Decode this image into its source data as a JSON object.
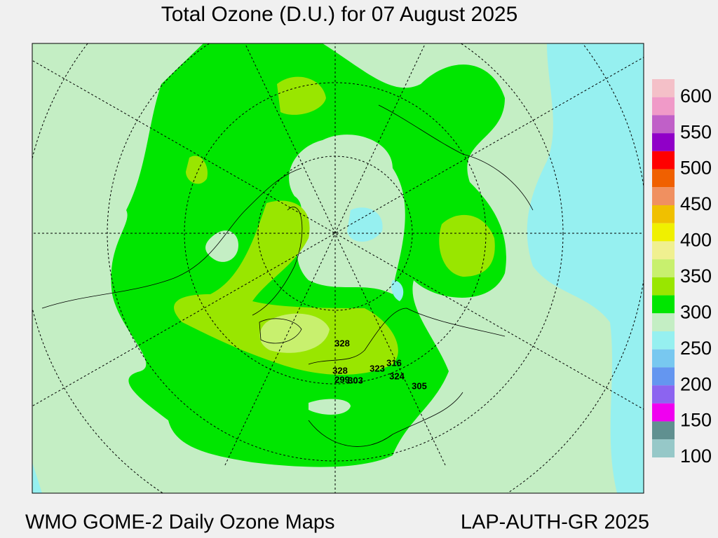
{
  "title": "Total Ozone (D.U.) for 07 August 2025",
  "footer": {
    "left": "WMO GOME-2 Daily Ozone Maps",
    "right": "LAP-AUTH-GR 2025"
  },
  "legend": {
    "labels": [
      600,
      550,
      500,
      450,
      400,
      350,
      300,
      250,
      200,
      150,
      100
    ],
    "colors": [
      "#f4c0c8",
      "#f09ac8",
      "#c060c8",
      "#9000c8",
      "#ff0000",
      "#f06000",
      "#f09060",
      "#f0c000",
      "#f0f000",
      "#f0f090",
      "#c8f06e",
      "#99e600",
      "#00e600",
      "#c4eec4",
      "#96f0f0",
      "#78c8f0",
      "#6496f0",
      "#8c64f0",
      "#f000f0",
      "#609090",
      "#96c8c8"
    ]
  },
  "stations": [
    328,
    328,
    299,
    303,
    323,
    316,
    324,
    305
  ]
}
